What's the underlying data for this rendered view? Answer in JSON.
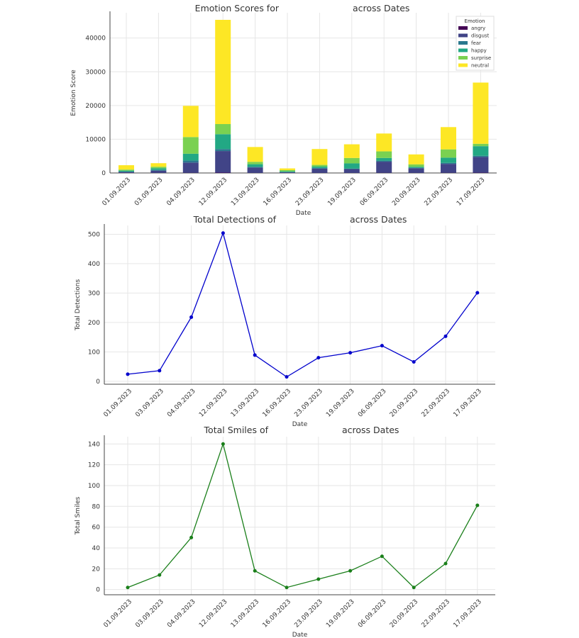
{
  "chart_data": [
    {
      "type": "bar",
      "stacked": true,
      "title_left": "Emotion Scores for",
      "title_right": "across Dates",
      "xlabel": "Date",
      "ylabel": "Emotion Score",
      "ylim": [
        0,
        47500
      ],
      "yticks": [
        0,
        10000,
        20000,
        30000,
        40000
      ],
      "grid": true,
      "legend_title": "Emotion",
      "legend_position": "top-right",
      "categories": [
        "01.09.2023",
        "03.09.2023",
        "04.09.2023",
        "12.09.2023",
        "13.09.2023",
        "16.09.2023",
        "23.09.2023",
        "19.09.2023",
        "06.09.2023",
        "20.09.2023",
        "22.09.2023",
        "17.09.2023"
      ],
      "series": [
        {
          "name": "angry",
          "color": "#440154",
          "values": [
            30,
            30,
            50,
            100,
            30,
            20,
            30,
            30,
            50,
            30,
            50,
            80
          ]
        },
        {
          "name": "disgust",
          "color": "#414487",
          "values": [
            270,
            670,
            3050,
            6400,
            1570,
            180,
            1270,
            1120,
            3300,
            1370,
            2650,
            4670
          ]
        },
        {
          "name": "fear",
          "color": "#2a788e",
          "values": [
            100,
            200,
            600,
            600,
            250,
            80,
            200,
            150,
            300,
            150,
            300,
            350
          ]
        },
        {
          "name": "happy",
          "color": "#22a884",
          "values": [
            300,
            500,
            2000,
            4400,
            750,
            220,
            400,
            1550,
            800,
            300,
            1550,
            2850
          ]
        },
        {
          "name": "surprise",
          "color": "#7ad151",
          "values": [
            300,
            450,
            4950,
            3000,
            700,
            350,
            500,
            1600,
            1950,
            700,
            2450,
            700
          ]
        },
        {
          "name": "neutral",
          "color": "#fde725",
          "values": [
            1300,
            1050,
            9250,
            30900,
            4400,
            500,
            4700,
            4050,
            5300,
            2950,
            6600,
            18150
          ]
        }
      ]
    },
    {
      "type": "line",
      "title_left": "Total Detections of",
      "title_right": "across Dates",
      "xlabel": "Date",
      "ylabel": "Total Detections",
      "ylim": [
        -10,
        530
      ],
      "yticks": [
        0,
        100,
        200,
        300,
        400,
        500
      ],
      "grid": true,
      "color": "#0000cc",
      "categories": [
        "01.09.2023",
        "03.09.2023",
        "04.09.2023",
        "12.09.2023",
        "13.09.2023",
        "16.09.2023",
        "23.09.2023",
        "19.09.2023",
        "06.09.2023",
        "20.09.2023",
        "22.09.2023",
        "17.09.2023"
      ],
      "values": [
        24,
        36,
        218,
        504,
        89,
        15,
        80,
        97,
        121,
        66,
        153,
        301
      ]
    },
    {
      "type": "line",
      "title_left": "Total Smiles of",
      "title_right": "across Dates",
      "xlabel": "Date",
      "ylabel": "Total Smiles",
      "ylim": [
        -5,
        147
      ],
      "yticks": [
        0,
        20,
        40,
        60,
        80,
        100,
        120,
        140
      ],
      "grid": true,
      "color": "#1a7f1a",
      "categories": [
        "01.09.2023",
        "03.09.2023",
        "04.09.2023",
        "12.09.2023",
        "13.09.2023",
        "16.09.2023",
        "23.09.2023",
        "19.09.2023",
        "06.09.2023",
        "20.09.2023",
        "22.09.2023",
        "17.09.2023"
      ],
      "values": [
        2,
        14,
        50,
        140,
        18,
        2,
        10,
        18,
        32,
        2,
        25,
        81
      ]
    }
  ]
}
